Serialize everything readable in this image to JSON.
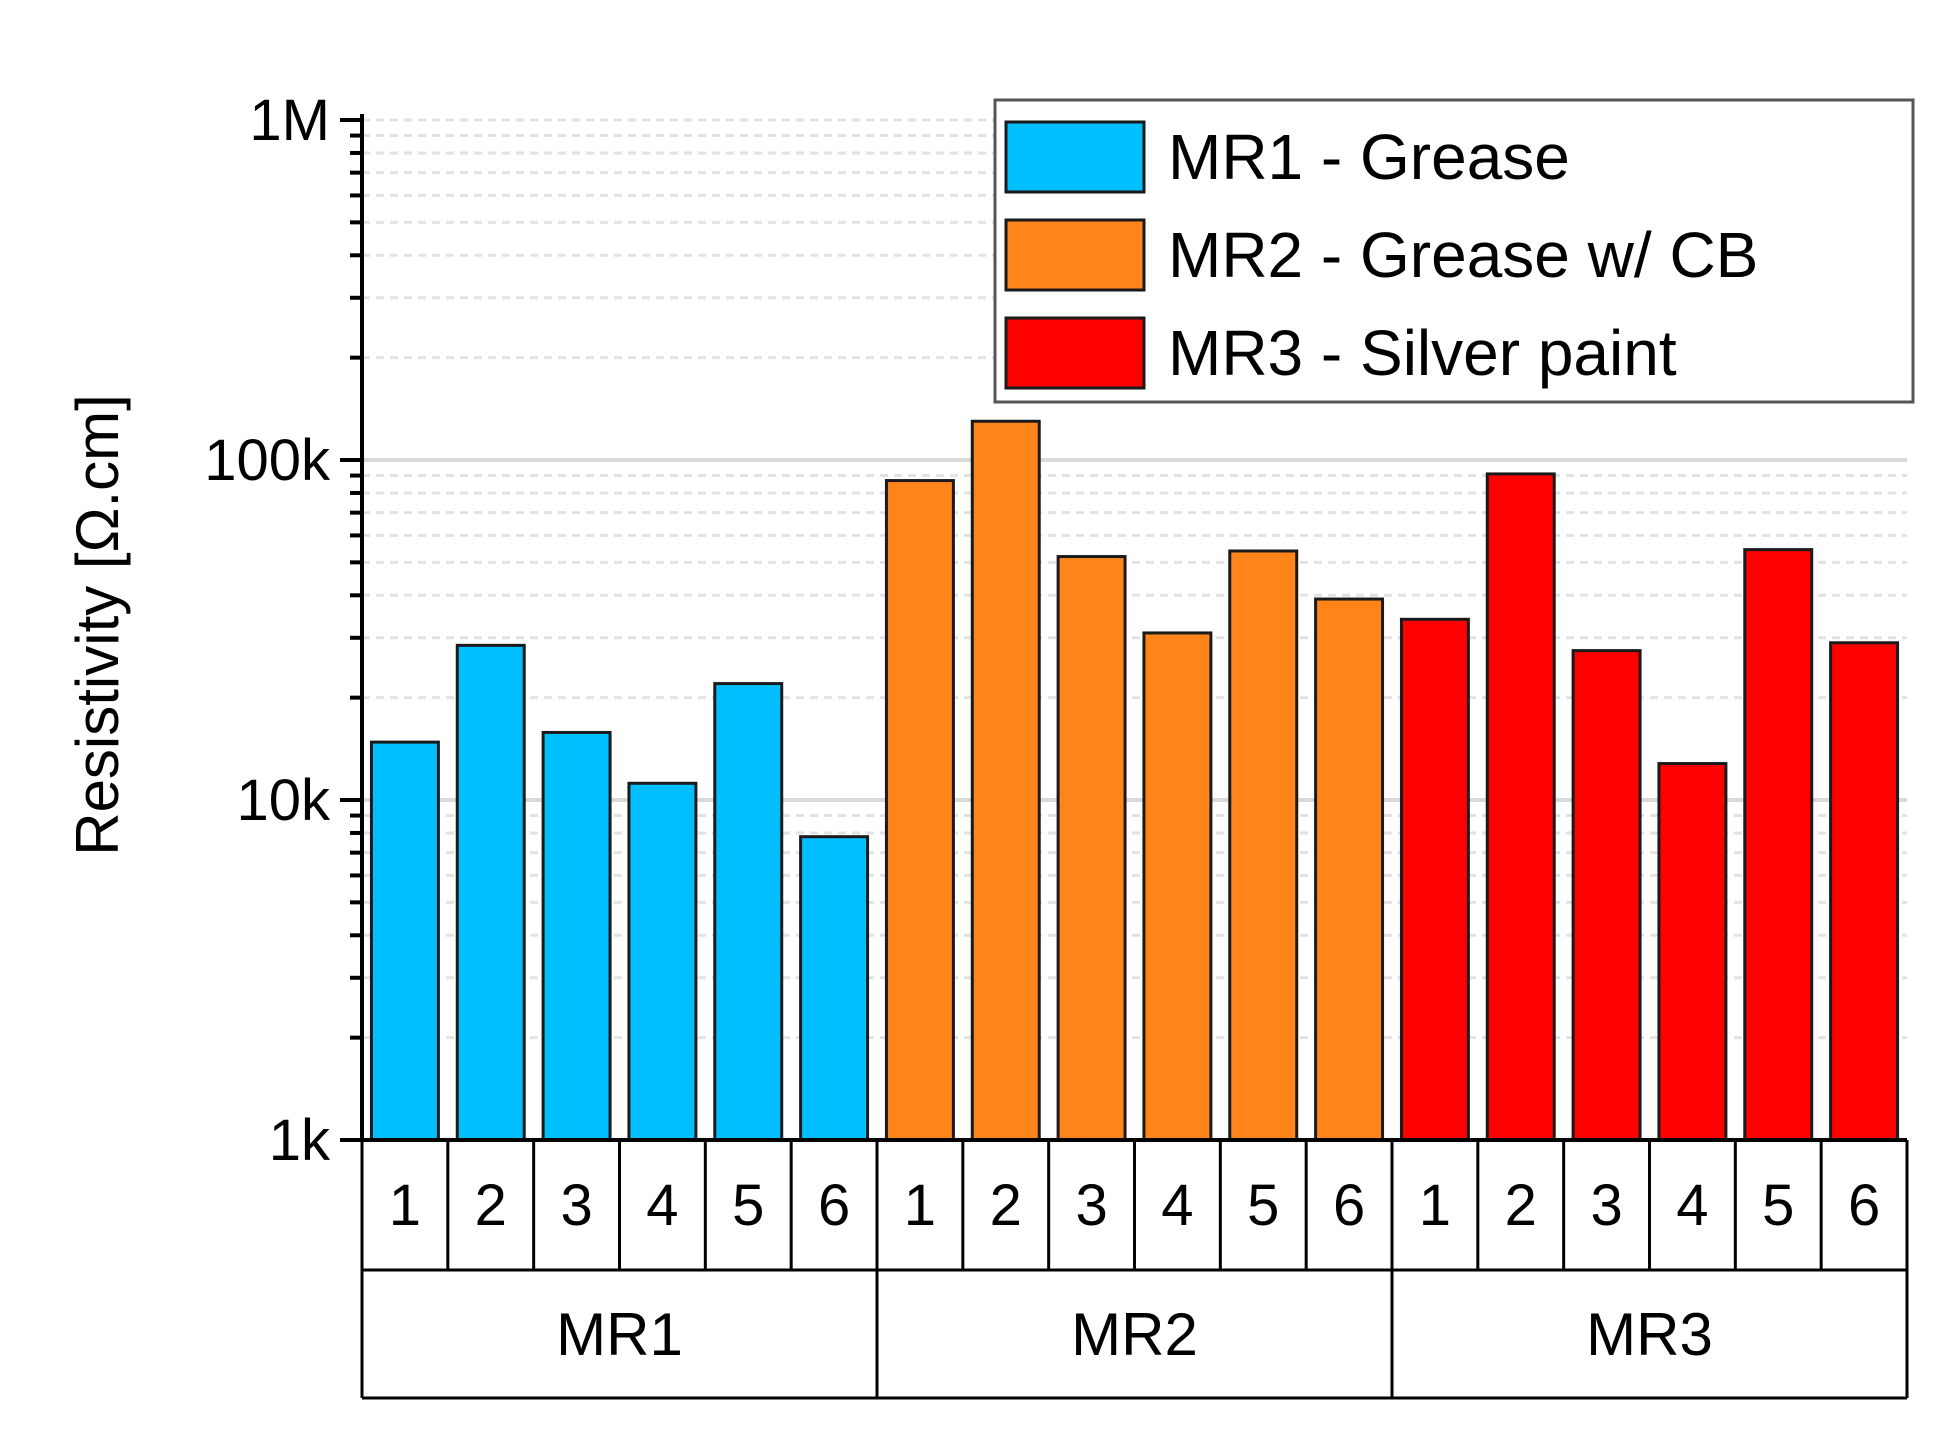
{
  "chart_data": {
    "type": "bar",
    "title": "",
    "ylabel": "Resistivity [Ω.cm]",
    "xlabel": "",
    "yscale": "log",
    "ylim": [
      1000,
      1000000
    ],
    "yticks": [
      {
        "value": 1000,
        "label": "1k"
      },
      {
        "value": 10000,
        "label": "10k"
      },
      {
        "value": 100000,
        "label": "100k"
      },
      {
        "value": 1000000,
        "label": "1M"
      }
    ],
    "grid": true,
    "legend_position": "top-right",
    "categories": [
      "1",
      "2",
      "3",
      "4",
      "5",
      "6"
    ],
    "series": [
      {
        "name": "MR1 - Grease",
        "group": "MR1",
        "color": "#00BFFF",
        "values": [
          14800,
          28500,
          15800,
          11200,
          22000,
          7800
        ]
      },
      {
        "name": "MR2 - Grease w/ CB",
        "group": "MR2",
        "color": "#FF851B",
        "values": [
          87000,
          130000,
          52000,
          31000,
          54000,
          39000
        ]
      },
      {
        "name": "MR3 - Silver paint",
        "group": "MR3",
        "color": "#FF0000",
        "values": [
          34000,
          91000,
          27500,
          12800,
          54500,
          29000
        ]
      }
    ]
  }
}
